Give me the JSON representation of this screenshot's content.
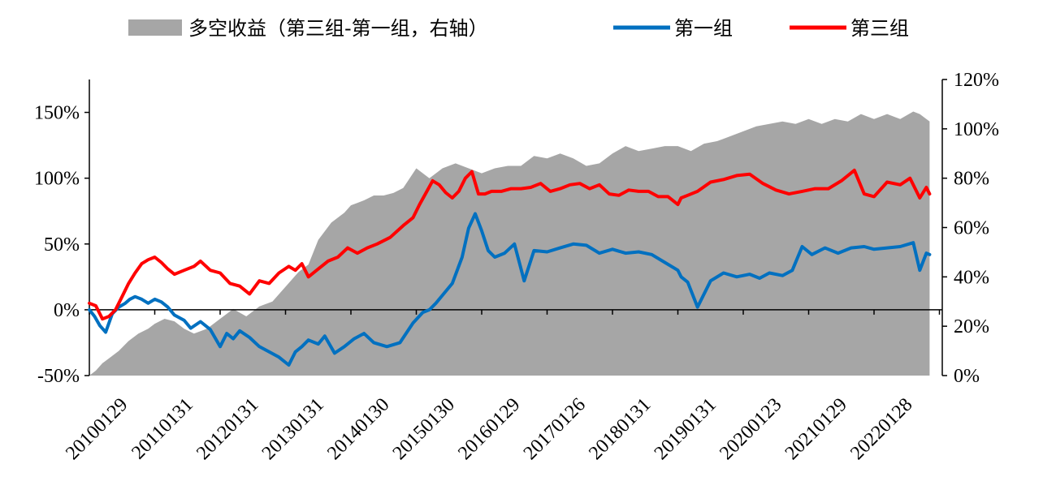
{
  "chart_data": {
    "type": "line",
    "legend_placement": "top",
    "grid": false,
    "colors": {
      "spread_area": "#a6a6a6",
      "group1": "#0070c0",
      "group3": "#ff0000",
      "axis": "#000000"
    },
    "categories": [
      "20100129",
      "20110131",
      "20120131",
      "20130131",
      "20140130",
      "20150130",
      "20160129",
      "20170126",
      "20180131",
      "20190131",
      "20200123",
      "20210129",
      "20220128"
    ],
    "y_left": {
      "ylim": [
        -50,
        175
      ],
      "ticks": [
        -50,
        0,
        50,
        100,
        150
      ],
      "tick_labels": [
        "-50%",
        "0%",
        "50%",
        "100%",
        "150%"
      ]
    },
    "y_right": {
      "ylim": [
        0,
        120
      ],
      "ticks": [
        0,
        20,
        40,
        60,
        80,
        100,
        120
      ],
      "tick_labels": [
        "0%",
        "20%",
        "40%",
        "60%",
        "80%",
        "100%",
        "120%"
      ]
    },
    "series": [
      {
        "name": "多空收益（第三组-第一组，右轴）",
        "type": "area",
        "axis": "right",
        "color": "#a6a6a6",
        "x": [
          0.0,
          0.1,
          0.2,
          0.3,
          0.45,
          0.6,
          0.75,
          0.9,
          1.0,
          1.15,
          1.3,
          1.45,
          1.6,
          1.8,
          2.0,
          2.2,
          2.4,
          2.6,
          2.8,
          3.0,
          3.2,
          3.35,
          3.5,
          3.7,
          3.9,
          4.0,
          4.1,
          4.2,
          4.35,
          4.5,
          4.65,
          4.8,
          5.0,
          5.2,
          5.4,
          5.6,
          5.8,
          6.0,
          6.2,
          6.4,
          6.6,
          6.8,
          7.0,
          7.2,
          7.4,
          7.6,
          7.8,
          8.0,
          8.2,
          8.4,
          8.6,
          8.8,
          9.0,
          9.2,
          9.4,
          9.6,
          9.8,
          10.0,
          10.2,
          10.4,
          10.6,
          10.8,
          11.0,
          11.2,
          11.4,
          11.6,
          11.8,
          12.0,
          12.2,
          12.4,
          12.6,
          12.7,
          12.8,
          12.85
        ],
        "values": [
          0,
          2,
          5,
          7,
          10,
          14,
          17,
          19,
          21,
          23,
          22,
          19,
          17,
          19,
          23,
          27,
          24,
          28,
          30,
          36,
          42,
          45,
          55,
          62,
          66,
          69,
          70,
          71,
          73,
          73,
          74,
          76,
          84,
          80,
          84,
          86,
          84,
          82,
          84,
          85,
          85,
          89,
          88,
          90,
          88,
          85,
          86,
          90,
          93,
          91,
          92,
          93,
          93,
          91,
          94,
          95,
          97,
          99,
          101,
          102,
          103,
          102,
          104,
          102,
          104,
          103,
          106,
          104,
          106,
          104,
          107,
          106,
          104,
          103
        ]
      },
      {
        "name": "第一组",
        "type": "line",
        "axis": "left",
        "color": "#0070c0",
        "x": [
          0.0,
          0.08,
          0.16,
          0.25,
          0.35,
          0.45,
          0.55,
          0.62,
          0.7,
          0.8,
          0.9,
          1.0,
          1.1,
          1.2,
          1.3,
          1.45,
          1.55,
          1.7,
          1.85,
          2.0,
          2.1,
          2.2,
          2.3,
          2.45,
          2.6,
          2.75,
          2.9,
          3.05,
          3.15,
          3.25,
          3.35,
          3.5,
          3.6,
          3.75,
          3.9,
          4.05,
          4.2,
          4.35,
          4.55,
          4.75,
          4.95,
          5.1,
          5.2,
          5.3,
          5.4,
          5.55,
          5.7,
          5.8,
          5.9,
          6.0,
          6.1,
          6.2,
          6.35,
          6.5,
          6.65,
          6.8,
          7.0,
          7.2,
          7.4,
          7.6,
          7.8,
          8.0,
          8.2,
          8.4,
          8.6,
          8.8,
          9.0,
          9.05,
          9.15,
          9.3,
          9.5,
          9.7,
          9.9,
          10.1,
          10.25,
          10.4,
          10.6,
          10.75,
          10.9,
          11.05,
          11.25,
          11.45,
          11.65,
          11.85,
          12.0,
          12.2,
          12.4,
          12.6,
          12.7,
          12.8,
          12.85
        ],
        "values": [
          0,
          -5,
          -12,
          -17,
          -3,
          2,
          5,
          8,
          10,
          8,
          5,
          8,
          6,
          2,
          -4,
          -8,
          -14,
          -9,
          -15,
          -28,
          -18,
          -22,
          -16,
          -21,
          -28,
          -32,
          -36,
          -42,
          -32,
          -28,
          -23,
          -26,
          -20,
          -33,
          -28,
          -22,
          -18,
          -25,
          -28,
          -25,
          -10,
          -2,
          0,
          5,
          11,
          20,
          40,
          62,
          73,
          60,
          45,
          40,
          43,
          50,
          22,
          45,
          44,
          47,
          50,
          49,
          43,
          46,
          43,
          44,
          42,
          36,
          30,
          25,
          21,
          2,
          22,
          28,
          25,
          27,
          24,
          28,
          26,
          30,
          48,
          42,
          47,
          43,
          47,
          48,
          46,
          47,
          48,
          51,
          30,
          43,
          42
        ]
      },
      {
        "name": "第三组",
        "type": "line",
        "axis": "left",
        "color": "#ff0000",
        "x": [
          0.0,
          0.1,
          0.2,
          0.3,
          0.4,
          0.5,
          0.6,
          0.7,
          0.8,
          0.9,
          1.0,
          1.1,
          1.2,
          1.3,
          1.45,
          1.6,
          1.7,
          1.85,
          2.0,
          2.15,
          2.3,
          2.45,
          2.6,
          2.75,
          2.9,
          3.05,
          3.15,
          3.25,
          3.35,
          3.5,
          3.65,
          3.8,
          3.95,
          4.1,
          4.25,
          4.4,
          4.6,
          4.8,
          4.95,
          5.05,
          5.15,
          5.25,
          5.35,
          5.45,
          5.55,
          5.65,
          5.75,
          5.85,
          5.95,
          6.05,
          6.15,
          6.3,
          6.45,
          6.6,
          6.75,
          6.9,
          7.05,
          7.2,
          7.35,
          7.5,
          7.65,
          7.8,
          7.95,
          8.1,
          8.25,
          8.4,
          8.55,
          8.7,
          8.85,
          9.0,
          9.05,
          9.15,
          9.3,
          9.5,
          9.7,
          9.9,
          10.1,
          10.3,
          10.5,
          10.7,
          10.9,
          11.1,
          11.3,
          11.5,
          11.7,
          11.85,
          12.0,
          12.2,
          12.4,
          12.55,
          12.7,
          12.8,
          12.85
        ],
        "values": [
          5,
          3,
          -7,
          -5,
          0,
          10,
          20,
          28,
          35,
          38,
          40,
          36,
          31,
          27,
          30,
          33,
          37,
          30,
          28,
          20,
          18,
          12,
          22,
          20,
          28,
          33,
          30,
          35,
          25,
          31,
          37,
          40,
          47,
          43,
          47,
          50,
          55,
          64,
          70,
          80,
          89,
          98,
          95,
          89,
          85,
          90,
          100,
          105,
          88,
          88,
          90,
          90,
          92,
          92,
          93,
          96,
          90,
          92,
          95,
          96,
          92,
          95,
          88,
          87,
          91,
          90,
          90,
          86,
          86,
          80,
          85,
          87,
          90,
          97,
          99,
          102,
          103,
          96,
          91,
          88,
          90,
          92,
          92,
          98,
          106,
          88,
          86,
          97,
          95,
          100,
          85,
          93,
          88
        ]
      }
    ]
  }
}
